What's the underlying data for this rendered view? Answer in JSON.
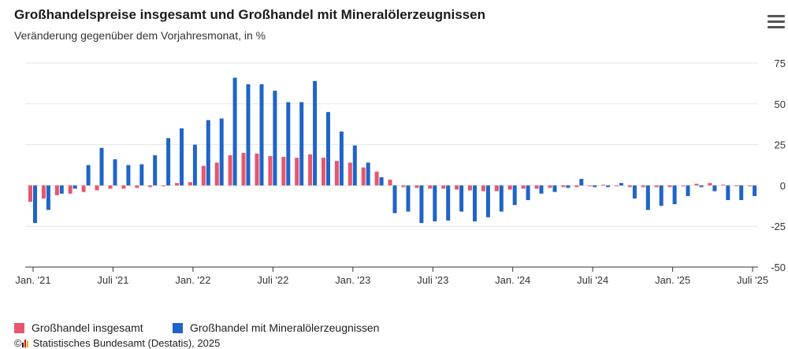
{
  "header": {
    "title": "Großhandelspreise insgesamt und Großhandel mit Mineralölerzeugnissen",
    "subtitle": "Veränderung gegenüber dem Vorjahresmonat, in %",
    "menu_icon": "hamburger-menu-icon"
  },
  "footer": {
    "copyright_symbol": "©",
    "logo_icon": "destatis-logo-icon",
    "source": "Statistisches Bundesamt (Destatis), 2025"
  },
  "colors": {
    "series1": "#e8566d",
    "series2": "#1f64c8",
    "grid": "#e6e6e6",
    "axis": "#333333"
  },
  "chart_data": {
    "type": "bar",
    "title": "Großhandelspreise insgesamt und Großhandel mit Mineralölerzeugnissen",
    "subtitle": "Veränderung gegenüber dem Vorjahresmonat, in %",
    "ylim": [
      -50,
      75
    ],
    "yticks": [
      75,
      50,
      25,
      0,
      -25,
      -50
    ],
    "y_axis_side": "right",
    "grid": true,
    "legend_position": "bottom-left",
    "x_tick_labels": [
      {
        "index": 0,
        "label": "Jan. '21"
      },
      {
        "index": 6,
        "label": "Juli '21"
      },
      {
        "index": 12,
        "label": "Jan. '22"
      },
      {
        "index": 18,
        "label": "Juli '22"
      },
      {
        "index": 24,
        "label": "Jan. '23"
      },
      {
        "index": 30,
        "label": "Juli '23"
      },
      {
        "index": 36,
        "label": "Jan. '24"
      },
      {
        "index": 42,
        "label": "Juli '24"
      },
      {
        "index": 48,
        "label": "Jan. '25"
      },
      {
        "index": 54,
        "label": "Juli '25"
      }
    ],
    "categories": [
      "2021-01",
      "2021-02",
      "2021-03",
      "2021-04",
      "2021-05",
      "2021-06",
      "2021-07",
      "2021-08",
      "2021-09",
      "2021-10",
      "2021-11",
      "2021-12",
      "2022-01",
      "2022-02",
      "2022-03",
      "2022-04",
      "2022-05",
      "2022-06",
      "2022-07",
      "2022-08",
      "2022-09",
      "2022-10",
      "2022-11",
      "2022-12",
      "2023-01",
      "2023-02",
      "2023-03",
      "2023-04",
      "2023-05",
      "2023-06",
      "2023-07",
      "2023-08",
      "2023-09",
      "2023-10",
      "2023-11",
      "2023-12",
      "2024-01",
      "2024-02",
      "2024-03",
      "2024-04",
      "2024-05",
      "2024-06",
      "2024-07",
      "2024-08",
      "2024-09",
      "2024-10",
      "2024-11",
      "2024-12",
      "2025-01",
      "2025-02",
      "2025-03",
      "2025-04",
      "2025-05",
      "2025-06",
      "2025-07"
    ],
    "series": [
      {
        "name": "Großhandel insgesamt",
        "values": [
          -10,
          -8,
          -6,
          -5,
          -4,
          -3,
          -2,
          -2,
          -1.5,
          -1,
          -0.5,
          1.5,
          2,
          12,
          14,
          18.5,
          20,
          19.5,
          18,
          17.5,
          17,
          19,
          17,
          15,
          14,
          11,
          8.5,
          3.5,
          -1,
          -1.5,
          -2,
          -2,
          -2.5,
          -3,
          -3.5,
          -3.5,
          -2.5,
          -2,
          -2,
          -1.5,
          -1,
          -1,
          -0.5,
          0.5,
          -0.5,
          -1,
          -1,
          -1,
          -1,
          -0.5,
          1,
          1.5,
          0.5,
          -0.5,
          -0.5
        ]
      },
      {
        "name": "Großhandel mit Mineralölerzeugnissen",
        "values": [
          -23,
          -15,
          -5,
          -2,
          12.5,
          23,
          16,
          12.5,
          13,
          18.5,
          29,
          35,
          25,
          40,
          41,
          66,
          62,
          62,
          58,
          51,
          51,
          64,
          45,
          33,
          24.5,
          14,
          5,
          -17,
          -16,
          -23,
          -22,
          -21.5,
          -16,
          -22,
          -19.5,
          -16,
          -12,
          -9,
          -5,
          -4,
          -1.5,
          4,
          -1,
          -1,
          1.5,
          -8,
          -15,
          -12.5,
          -11.5,
          -6.5,
          -1,
          -3.5,
          -9,
          -9,
          -6.5
        ]
      }
    ]
  }
}
